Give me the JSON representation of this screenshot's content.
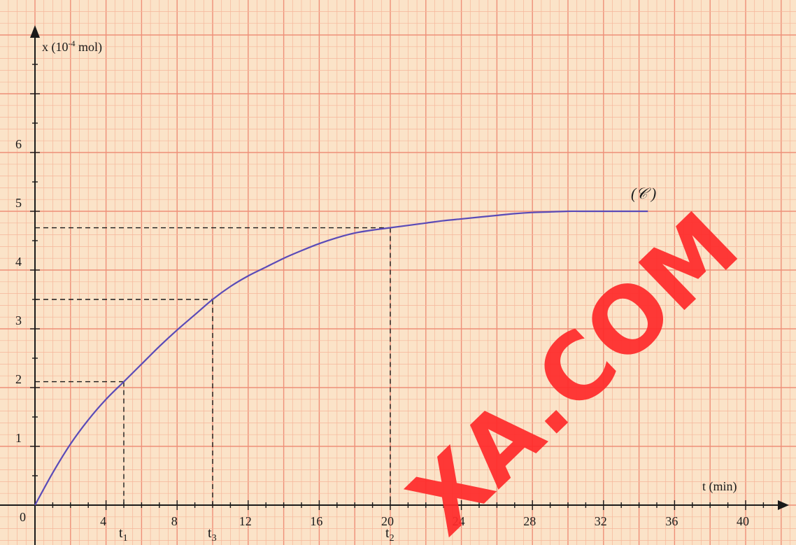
{
  "chart_data": {
    "type": "line",
    "xlabel": "t (min)",
    "ylabel_prefix": "x (10",
    "ylabel_exp": "-4",
    "ylabel_suffix": " mol)",
    "xlim": [
      0,
      42.5
    ],
    "ylim": [
      0,
      8.2
    ],
    "x_ticks": [
      0,
      4,
      8,
      12,
      16,
      20,
      24,
      28,
      32,
      36,
      40
    ],
    "x_tick_labels": [
      "0",
      "4",
      "8",
      "12",
      "16",
      "20",
      "24",
      "28",
      "32",
      "36",
      "40"
    ],
    "y_ticks": [
      1,
      2,
      3,
      4,
      5,
      6
    ],
    "y_tick_labels": [
      "1",
      "2",
      "3",
      "4",
      "5",
      "6"
    ],
    "grid": true,
    "series": [
      {
        "name": "(𝒞 )",
        "color": "#5a4bb8",
        "x": [
          0,
          1,
          2,
          3,
          4,
          5,
          6,
          7,
          8,
          9,
          10,
          11,
          12,
          13,
          14,
          15,
          16,
          17,
          18,
          19,
          20,
          21,
          22,
          23,
          24,
          25,
          26,
          27,
          28,
          29,
          30,
          31,
          32,
          33,
          34.5
        ],
        "y": [
          0,
          0.55,
          1.04,
          1.45,
          1.8,
          2.1,
          2.4,
          2.7,
          2.98,
          3.24,
          3.5,
          3.72,
          3.9,
          4.05,
          4.2,
          4.33,
          4.45,
          4.55,
          4.63,
          4.68,
          4.72,
          4.76,
          4.8,
          4.84,
          4.87,
          4.9,
          4.93,
          4.96,
          4.98,
          4.99,
          5.0,
          5.0,
          5.0,
          5.0,
          5.0
        ]
      }
    ],
    "markers": [
      {
        "label": "t",
        "sub": "1",
        "x": 5,
        "y": 2.1
      },
      {
        "label": "t",
        "sub": "3",
        "x": 10,
        "y": 3.5
      },
      {
        "label": "t",
        "sub": "2",
        "x": 20,
        "y": 4.72
      }
    ]
  },
  "colors": {
    "paper": "#fbe3c8",
    "grid_minor": "#f6b69a",
    "grid_major": "#ee8f78",
    "axis": "#1a1a1a",
    "watermark": "#ff2a2a"
  },
  "watermark": "XA.COM"
}
